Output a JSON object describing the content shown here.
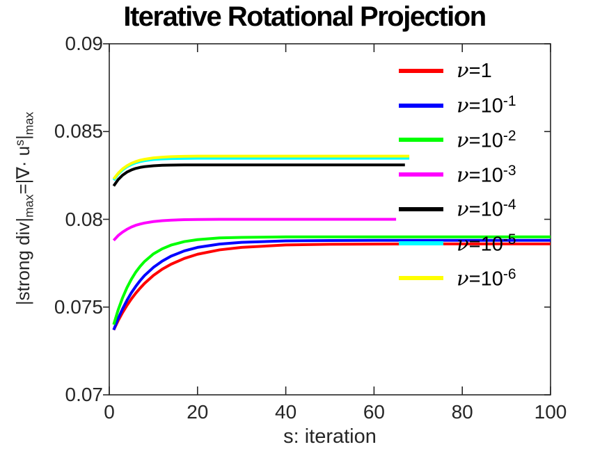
{
  "figure": {
    "background": "#ffffff"
  },
  "chart_data": {
    "type": "line",
    "title": "Iterative Rotational Projection",
    "xlabel": "s: iteration",
    "ylabel": "|strong div|_max = |∇· u^s|_max",
    "ylabel_segments": [
      {
        "t": "|strong div|",
        "s": ""
      },
      {
        "t": "max",
        "s": "sub"
      },
      {
        "t": "=|∇· u",
        "s": ""
      },
      {
        "t": "s",
        "s": "sup"
      },
      {
        "t": "|",
        "s": ""
      },
      {
        "t": "max",
        "s": "sub"
      }
    ],
    "xlim": [
      0,
      100
    ],
    "ylim": [
      0.07,
      0.09
    ],
    "xticks": [
      0,
      20,
      40,
      60,
      80,
      100
    ],
    "xtick_labels": [
      "0",
      "20",
      "40",
      "60",
      "80",
      "100"
    ],
    "yticks": [
      0.07,
      0.075,
      0.08,
      0.085,
      0.09
    ],
    "ytick_labels": [
      "0.07",
      "0.075",
      "0.08",
      "0.085",
      "0.09"
    ],
    "grid": false,
    "axis_color": "#262626",
    "legend": {
      "position": "upper-right-inside",
      "frame": false
    },
    "series": [
      {
        "name": "nu=1",
        "color": "#ff0000",
        "legend_nu": "ν",
        "legend_base": "=1",
        "legend_exp": "",
        "x": [
          1,
          2,
          3,
          4,
          5,
          6,
          7,
          8,
          10,
          12,
          14,
          17,
          20,
          25,
          30,
          40,
          50,
          60,
          70,
          85,
          100
        ],
        "y": [
          0.0737,
          0.07422,
          0.07468,
          0.07509,
          0.07546,
          0.07579,
          0.07608,
          0.07635,
          0.0768,
          0.07716,
          0.07744,
          0.07777,
          0.07801,
          0.07826,
          0.0784,
          0.07854,
          0.07858,
          0.07859,
          0.0786,
          0.0786,
          0.0786
        ]
      },
      {
        "name": "nu=10^-1",
        "color": "#0000ff",
        "legend_nu": "ν",
        "legend_base": "=10",
        "legend_exp": "-1",
        "x": [
          1,
          2,
          3,
          4,
          5,
          6,
          7,
          8,
          10,
          12,
          14,
          17,
          20,
          25,
          30,
          40,
          50,
          60,
          70,
          85,
          100
        ],
        "y": [
          0.0737,
          0.07434,
          0.07489,
          0.07538,
          0.07581,
          0.07618,
          0.07651,
          0.0768,
          0.07726,
          0.07762,
          0.0779,
          0.0782,
          0.0784,
          0.07859,
          0.07869,
          0.07877,
          0.07879,
          0.0788,
          0.0788,
          0.0788,
          0.0788
        ]
      },
      {
        "name": "nu=10^-2",
        "color": "#00ff00",
        "legend_nu": "ν",
        "legend_base": "=10",
        "legend_exp": "-2",
        "x": [
          1,
          2,
          3,
          4,
          5,
          6,
          7,
          8,
          10,
          12,
          14,
          17,
          20,
          25,
          30,
          40,
          50,
          60,
          70,
          85,
          100
        ],
        "y": [
          0.074,
          0.07483,
          0.07552,
          0.0761,
          0.07658,
          0.07699,
          0.07732,
          0.0776,
          0.07803,
          0.07832,
          0.07853,
          0.07873,
          0.07884,
          0.07894,
          0.07897,
          0.079,
          0.079,
          0.079,
          0.079,
          0.079,
          0.079
        ]
      },
      {
        "name": "nu=10^-3",
        "color": "#ff00ff",
        "legend_nu": "ν",
        "legend_base": "=10",
        "legend_exp": "-3",
        "x": [
          1,
          2,
          3,
          4,
          5,
          6,
          7,
          8,
          10,
          12,
          14,
          17,
          20,
          25,
          30,
          40,
          50,
          60,
          65
        ],
        "y": [
          0.0788,
          0.07907,
          0.07927,
          0.07943,
          0.07956,
          0.07966,
          0.07973,
          0.07979,
          0.07987,
          0.07992,
          0.07995,
          0.07998,
          0.07999,
          0.08,
          0.08,
          0.08,
          0.08,
          0.08,
          0.08
        ]
      },
      {
        "name": "nu=10^-4",
        "color": "#000000",
        "legend_nu": "ν",
        "legend_base": "=10",
        "legend_exp": "-4",
        "x": [
          1,
          2,
          3,
          4,
          5,
          6,
          7,
          8,
          10,
          12,
          14,
          17,
          20,
          30,
          40,
          50,
          60,
          67
        ],
        "y": [
          0.0819,
          0.08226,
          0.08251,
          0.08269,
          0.08281,
          0.0829,
          0.08296,
          0.083,
          0.08305,
          0.08308,
          0.08309,
          0.0831,
          0.0831,
          0.0831,
          0.0831,
          0.0831,
          0.0831,
          0.0831
        ]
      },
      {
        "name": "nu=10^-5",
        "color": "#00ffff",
        "legend_nu": "ν",
        "legend_base": "=10",
        "legend_exp": "-5",
        "x": [
          1,
          2,
          3,
          4,
          5,
          6,
          7,
          8,
          10,
          12,
          14,
          17,
          20,
          30,
          40,
          50,
          60,
          68
        ],
        "y": [
          0.08223,
          0.08257,
          0.08281,
          0.08299,
          0.08312,
          0.08322,
          0.08329,
          0.08334,
          0.08341,
          0.08344,
          0.08346,
          0.08347,
          0.08348,
          0.08348,
          0.08348,
          0.08348,
          0.08348,
          0.08348
        ]
      },
      {
        "name": "nu=10^-6",
        "color": "#ffff00",
        "legend_nu": "ν",
        "legend_base": "=10",
        "legend_exp": "-6",
        "x": [
          1,
          2,
          3,
          4,
          5,
          6,
          7,
          8,
          10,
          12,
          14,
          17,
          20,
          30,
          40,
          50,
          60,
          68
        ],
        "y": [
          0.0823,
          0.08262,
          0.08287,
          0.08305,
          0.08319,
          0.08329,
          0.08337,
          0.08342,
          0.0835,
          0.08354,
          0.08357,
          0.08359,
          0.0836,
          0.0836,
          0.0836,
          0.0836,
          0.0836,
          0.0836
        ]
      }
    ]
  }
}
